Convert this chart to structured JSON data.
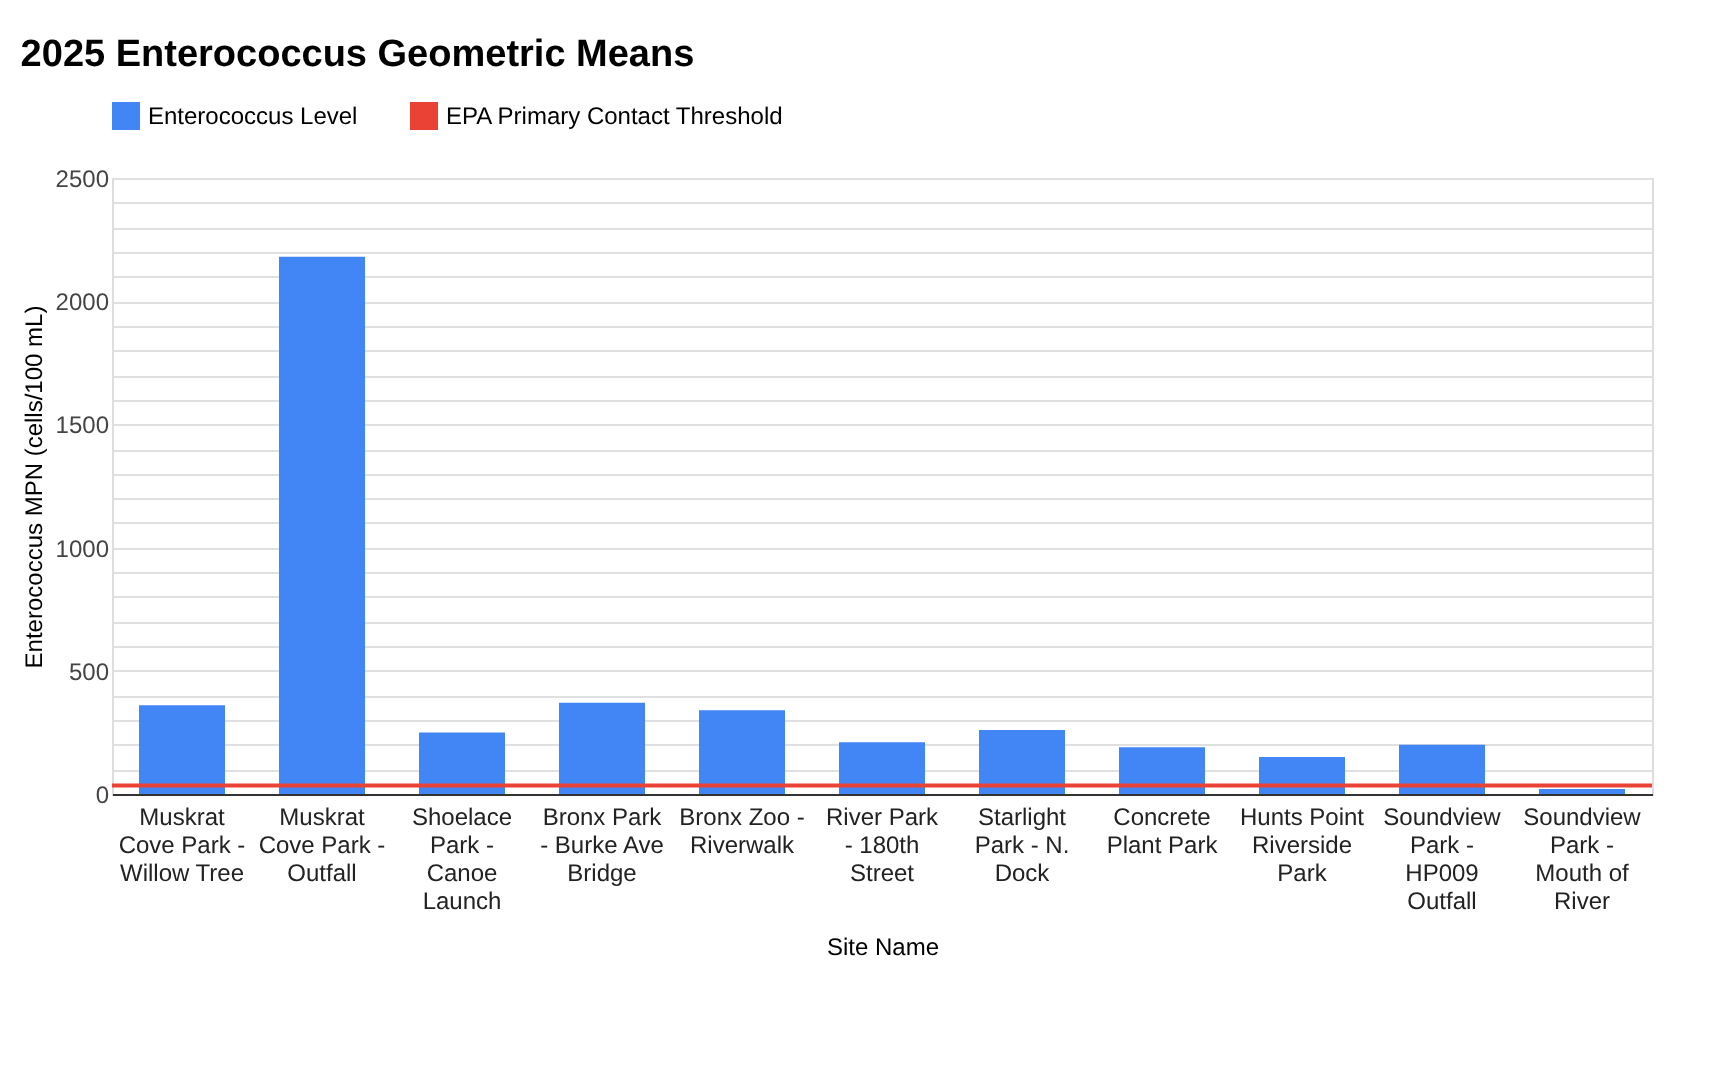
{
  "chart_data": {
    "type": "bar",
    "title": "2025 Enterococcus Geometric Means",
    "xlabel": "Site Name",
    "ylabel": "Enterococcus MPN (cells/100 mL)",
    "categories": [
      "Muskrat Cove Park - Willow Tree",
      "Muskrat Cove Park - Outfall",
      "Shoelace Park - Canoe Launch",
      "Bronx Park - Burke Ave Bridge",
      "Bronx Zoo - Riverwalk",
      "River Park - 180th Street",
      "Starlight Park - N. Dock",
      "Concrete Plant Park",
      "Hunts Point Riverside Park",
      "Soundview Park - HP009 Outfall",
      "Soundview Park - Mouth of River"
    ],
    "series": [
      {
        "name": "Enterococcus Level",
        "color": "#4285f4",
        "values": [
          360,
          2180,
          250,
          370,
          340,
          210,
          260,
          190,
          150,
          200,
          20
        ]
      }
    ],
    "ref_lines": [
      {
        "axis": "y",
        "value": 35,
        "label": "EPA Primary Contact Threshold",
        "color": "#ea4335",
        "line_style": "solid"
      }
    ],
    "ylim": [
      0,
      2500
    ],
    "yticks": [
      0,
      {
        "value": 100,
        "label": null
      },
      {
        "value": 200,
        "label": null
      },
      {
        "value": 300,
        "label": null
      },
      {
        "value": 400,
        "label": null
      },
      500,
      {
        "value": 600,
        "label": null
      },
      {
        "value": 700,
        "label": null
      },
      {
        "value": 800,
        "label": null
      },
      {
        "value": 900,
        "label": null
      },
      1000,
      {
        "value": 1100,
        "label": null
      },
      {
        "value": 1200,
        "label": null
      },
      {
        "value": 1300,
        "label": null
      },
      {
        "value": 1400,
        "label": null
      },
      1500,
      {
        "value": 1600,
        "label": null
      },
      {
        "value": 1700,
        "label": null
      },
      {
        "value": 1800,
        "label": null
      },
      {
        "value": 1900,
        "label": null
      },
      2000,
      {
        "value": 2100,
        "label": null
      },
      {
        "value": 2200,
        "label": null
      },
      {
        "value": 2300,
        "label": null
      },
      {
        "value": 2400,
        "label": null
      },
      2500
    ],
    "grid": "y",
    "legend": "top"
  }
}
